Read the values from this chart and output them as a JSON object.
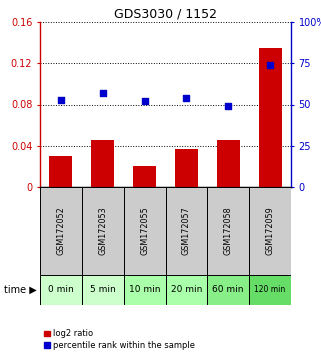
{
  "title": "GDS3030 / 1152",
  "samples": [
    "GSM172052",
    "GSM172053",
    "GSM172055",
    "GSM172057",
    "GSM172058",
    "GSM172059"
  ],
  "time_labels": [
    "0 min",
    "5 min",
    "10 min",
    "20 min",
    "60 min",
    "120 min"
  ],
  "log2_ratio": [
    0.03,
    0.046,
    0.02,
    0.037,
    0.046,
    0.135
  ],
  "percentile_rank": [
    53,
    57,
    52,
    54,
    49,
    74
  ],
  "ylim_left": [
    0,
    0.16
  ],
  "ylim_right": [
    0,
    100
  ],
  "yticks_left": [
    0,
    0.04,
    0.08,
    0.12,
    0.16
  ],
  "yticks_right": [
    0,
    25,
    50,
    75,
    100
  ],
  "ytick_labels_left": [
    "0",
    "0.04",
    "0.08",
    "0.12",
    "0.16"
  ],
  "ytick_labels_right": [
    "0",
    "25",
    "50",
    "75",
    "100%"
  ],
  "bar_color": "#cc0000",
  "dot_color": "#0000cc",
  "grid_color": "#000000",
  "bg_plot": "#ffffff",
  "bg_gsm": "#cccccc",
  "bg_time_light": "#ccffcc",
  "bg_time_dark": "#88ee88",
  "left_axis_color": "#cc0000",
  "right_axis_color": "#0000cc",
  "bar_width": 0.55,
  "legend_labels": [
    "log2 ratio",
    "percentile rank within the sample"
  ]
}
